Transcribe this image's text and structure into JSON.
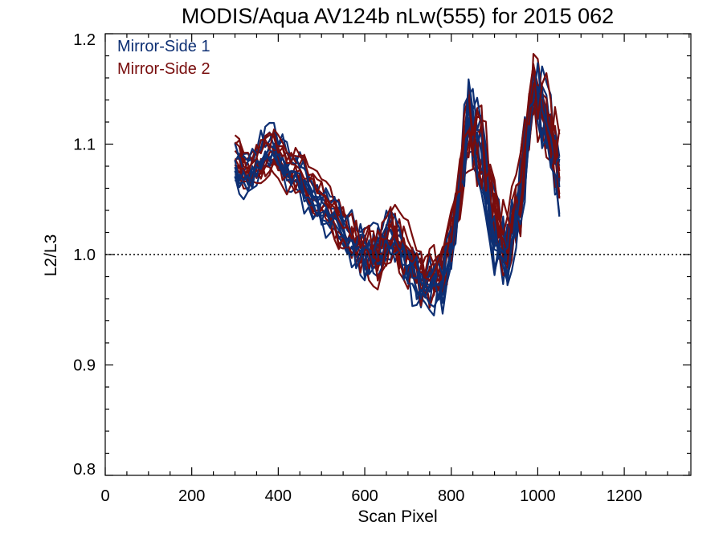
{
  "chart_data": {
    "type": "line",
    "title": "MODIS/Aqua AV124b nLw(555) for 2015 062",
    "xlabel": "Scan Pixel",
    "ylabel": "L2/L3",
    "xlim": [
      0,
      1354
    ],
    "ylim": [
      0.8,
      1.2
    ],
    "x_ticks": [
      0,
      200,
      400,
      600,
      800,
      1000,
      1200
    ],
    "x_tick_labels": [
      "0",
      "200",
      "400",
      "600",
      "800",
      "1000",
      "1200"
    ],
    "y_ticks": [
      0.8,
      0.9,
      1.0,
      1.1,
      1.2
    ],
    "y_tick_labels": [
      "0.8",
      "0.9",
      "1.0",
      "1.1",
      "1.2"
    ],
    "reference_line": {
      "y": 1.0,
      "style": "dotted"
    },
    "grid": false,
    "legend_position": "top-left",
    "colors": {
      "Mirror-Side 1": "#0d2f73",
      "Mirror-Side 2": "#780d0d"
    },
    "series": [
      {
        "name": "Mirror-Side 1",
        "x": [
          300,
          330,
          360,
          390,
          420,
          450,
          480,
          510,
          540,
          570,
          600,
          630,
          660,
          690,
          720,
          750,
          780,
          810,
          840,
          870,
          900,
          930,
          960,
          990,
          1020,
          1050
        ],
        "values": [
          1.08,
          1.07,
          1.09,
          1.1,
          1.08,
          1.07,
          1.05,
          1.04,
          1.03,
          1.01,
          1.0,
          1.01,
          1.02,
          1.0,
          0.98,
          0.97,
          0.98,
          1.03,
          1.13,
          1.09,
          1.02,
          1.0,
          1.05,
          1.15,
          1.12,
          1.07
        ]
      },
      {
        "name": "Mirror-Side 2",
        "x": [
          300,
          330,
          360,
          390,
          420,
          450,
          480,
          510,
          540,
          570,
          600,
          630,
          660,
          690,
          720,
          750,
          780,
          810,
          840,
          870,
          900,
          930,
          960,
          990,
          1020,
          1050
        ],
        "values": [
          1.09,
          1.08,
          1.09,
          1.1,
          1.08,
          1.08,
          1.06,
          1.05,
          1.03,
          1.02,
          1.01,
          1.0,
          1.02,
          1.01,
          0.99,
          0.98,
          0.99,
          1.04,
          1.12,
          1.1,
          1.04,
          1.01,
          1.06,
          1.15,
          1.13,
          1.08
        ]
      }
    ]
  }
}
